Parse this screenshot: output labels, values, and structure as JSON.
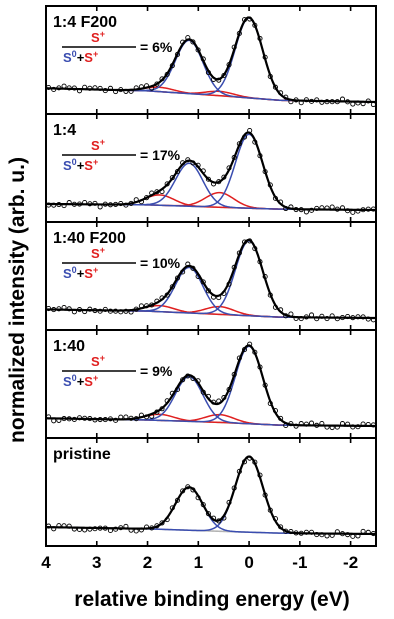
{
  "figure": {
    "ylabel": "normalized intensity (arb. u.)",
    "xlabel": "relative binding energy (eV)"
  },
  "chart_data": {
    "type": "line",
    "xlim": [
      4,
      -2.5
    ],
    "xticks": [
      4,
      3,
      2,
      1,
      0,
      -1,
      -2
    ],
    "xtick_labels": [
      "4",
      "3",
      "2",
      "1",
      "0",
      "-1",
      "-2"
    ],
    "xlabel": "relative binding energy (eV)",
    "ylabel": "normalized intensity (arb. u.)",
    "colors": {
      "fit": "#000000",
      "s0_component": "#3a4db0",
      "splus_component": "#e02020",
      "background": "#b4b4b4",
      "data_points": "#000000"
    },
    "panels": [
      {
        "name": "1:4 F200",
        "fraction_label": "= 6%",
        "fraction_percent": 6,
        "s0_peaks": [
          {
            "center": 0.0,
            "height": 0.93,
            "width": 0.27
          },
          {
            "center": 1.18,
            "height": 0.62,
            "width": 0.27
          }
        ],
        "splus_peaks": [
          {
            "center": 0.58,
            "height": 0.05,
            "width": 0.28
          },
          {
            "center": 1.76,
            "height": 0.05,
            "width": 0.28
          }
        ],
        "background": [
          {
            "x": 4.0,
            "y": 0.16
          },
          {
            "x": 2.0,
            "y": 0.13
          },
          {
            "x": 0.5,
            "y": 0.07
          },
          {
            "x": -0.6,
            "y": 0.02
          },
          {
            "x": -2.5,
            "y": 0.0
          }
        ]
      },
      {
        "name": "1:4",
        "fraction_label": "= 17%",
        "fraction_percent": 17,
        "s0_peaks": [
          {
            "center": 0.0,
            "height": 0.86,
            "width": 0.27
          },
          {
            "center": 1.18,
            "height": 0.5,
            "width": 0.27
          }
        ],
        "splus_peaks": [
          {
            "center": 0.58,
            "height": 0.17,
            "width": 0.28
          },
          {
            "center": 1.76,
            "height": 0.12,
            "width": 0.28
          }
        ],
        "background": [
          {
            "x": 4.0,
            "y": 0.07
          },
          {
            "x": 2.0,
            "y": 0.06
          },
          {
            "x": 0.5,
            "y": 0.03
          },
          {
            "x": -0.6,
            "y": 0.01
          },
          {
            "x": -2.5,
            "y": 0.0
          }
        ]
      },
      {
        "name": "1:40 F200",
        "fraction_label": "= 10%",
        "fraction_percent": 10,
        "s0_peaks": [
          {
            "center": 0.0,
            "height": 0.87,
            "width": 0.27
          },
          {
            "center": 1.18,
            "height": 0.53,
            "width": 0.27
          }
        ],
        "splus_peaks": [
          {
            "center": 0.58,
            "height": 0.09,
            "width": 0.28
          },
          {
            "center": 1.76,
            "height": 0.07,
            "width": 0.28
          }
        ],
        "background": [
          {
            "x": 4.0,
            "y": 0.1
          },
          {
            "x": 2.0,
            "y": 0.08
          },
          {
            "x": 0.5,
            "y": 0.04
          },
          {
            "x": -0.6,
            "y": 0.01
          },
          {
            "x": -2.5,
            "y": 0.0
          }
        ]
      },
      {
        "name": "1:40",
        "fraction_label": "= 9%",
        "fraction_percent": 9,
        "s0_peaks": [
          {
            "center": 0.0,
            "height": 0.9,
            "width": 0.27
          },
          {
            "center": 1.18,
            "height": 0.52,
            "width": 0.27
          }
        ],
        "splus_peaks": [
          {
            "center": 0.58,
            "height": 0.09,
            "width": 0.28
          },
          {
            "center": 1.76,
            "height": 0.07,
            "width": 0.28
          }
        ],
        "background": [
          {
            "x": 4.0,
            "y": 0.09
          },
          {
            "x": 2.0,
            "y": 0.07
          },
          {
            "x": 0.5,
            "y": 0.04
          },
          {
            "x": -0.6,
            "y": 0.01
          },
          {
            "x": -2.5,
            "y": 0.0
          }
        ]
      },
      {
        "name": "pristine",
        "fraction_label": "",
        "fraction_percent": null,
        "s0_peaks": [
          {
            "center": 0.0,
            "height": 0.88,
            "width": 0.27
          },
          {
            "center": 1.18,
            "height": 0.5,
            "width": 0.27
          }
        ],
        "splus_peaks": [],
        "background": [
          {
            "x": 4.0,
            "y": 0.08
          },
          {
            "x": 2.0,
            "y": 0.06
          },
          {
            "x": 0.5,
            "y": 0.03
          },
          {
            "x": -0.6,
            "y": 0.01
          },
          {
            "x": -2.5,
            "y": 0.0
          }
        ]
      }
    ]
  }
}
